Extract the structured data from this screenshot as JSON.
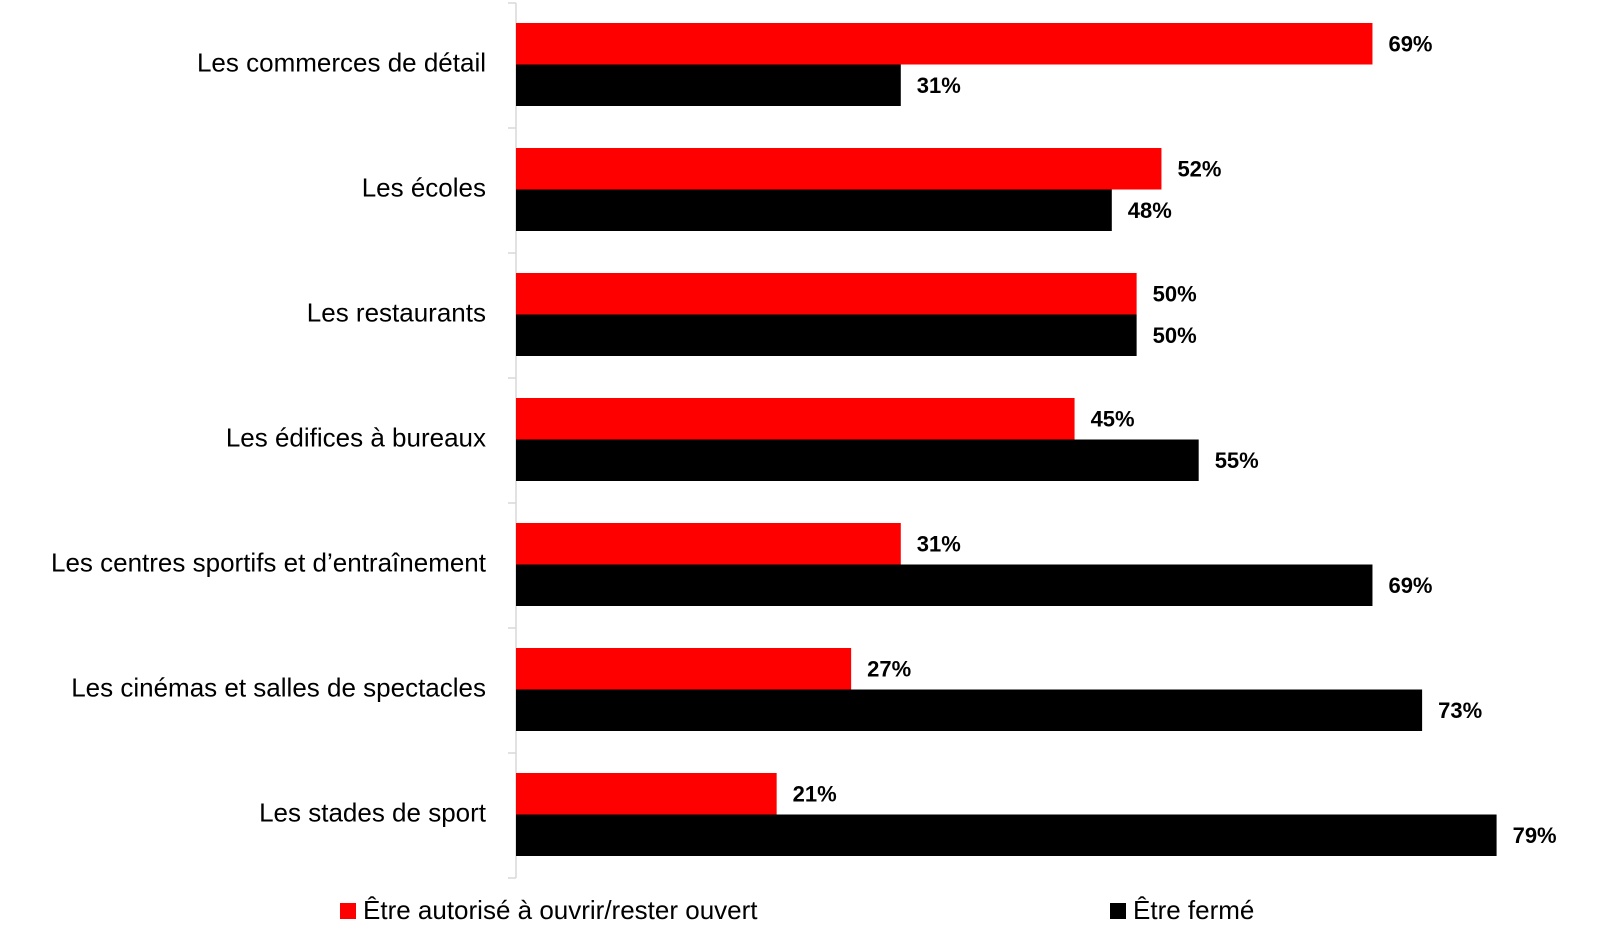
{
  "chart_data": {
    "type": "barh",
    "categories": [
      "Les commerces de détail",
      "Les écoles",
      "Les restaurants",
      "Les édifices à bureaux",
      "Les centres sportifs et d’entraînement",
      "Les cinémas et salles de spectacles",
      "Les stades de sport"
    ],
    "series": [
      {
        "name": "Être autorisé à ouvrir/rester ouvert",
        "color": "#ff0000",
        "values": [
          69,
          52,
          50,
          45,
          31,
          27,
          21
        ],
        "value_labels": [
          "69%",
          "52%",
          "50%",
          "45%",
          "31%",
          "27%",
          "21%"
        ]
      },
      {
        "name": "Être fermé",
        "color": "#000000",
        "values": [
          31,
          48,
          50,
          55,
          69,
          73,
          79
        ],
        "value_labels": [
          "31%",
          "48%",
          "50%",
          "55%",
          "69%",
          "73%",
          "79%"
        ]
      }
    ],
    "xlim": [
      0,
      80
    ],
    "legend": "bottom"
  }
}
